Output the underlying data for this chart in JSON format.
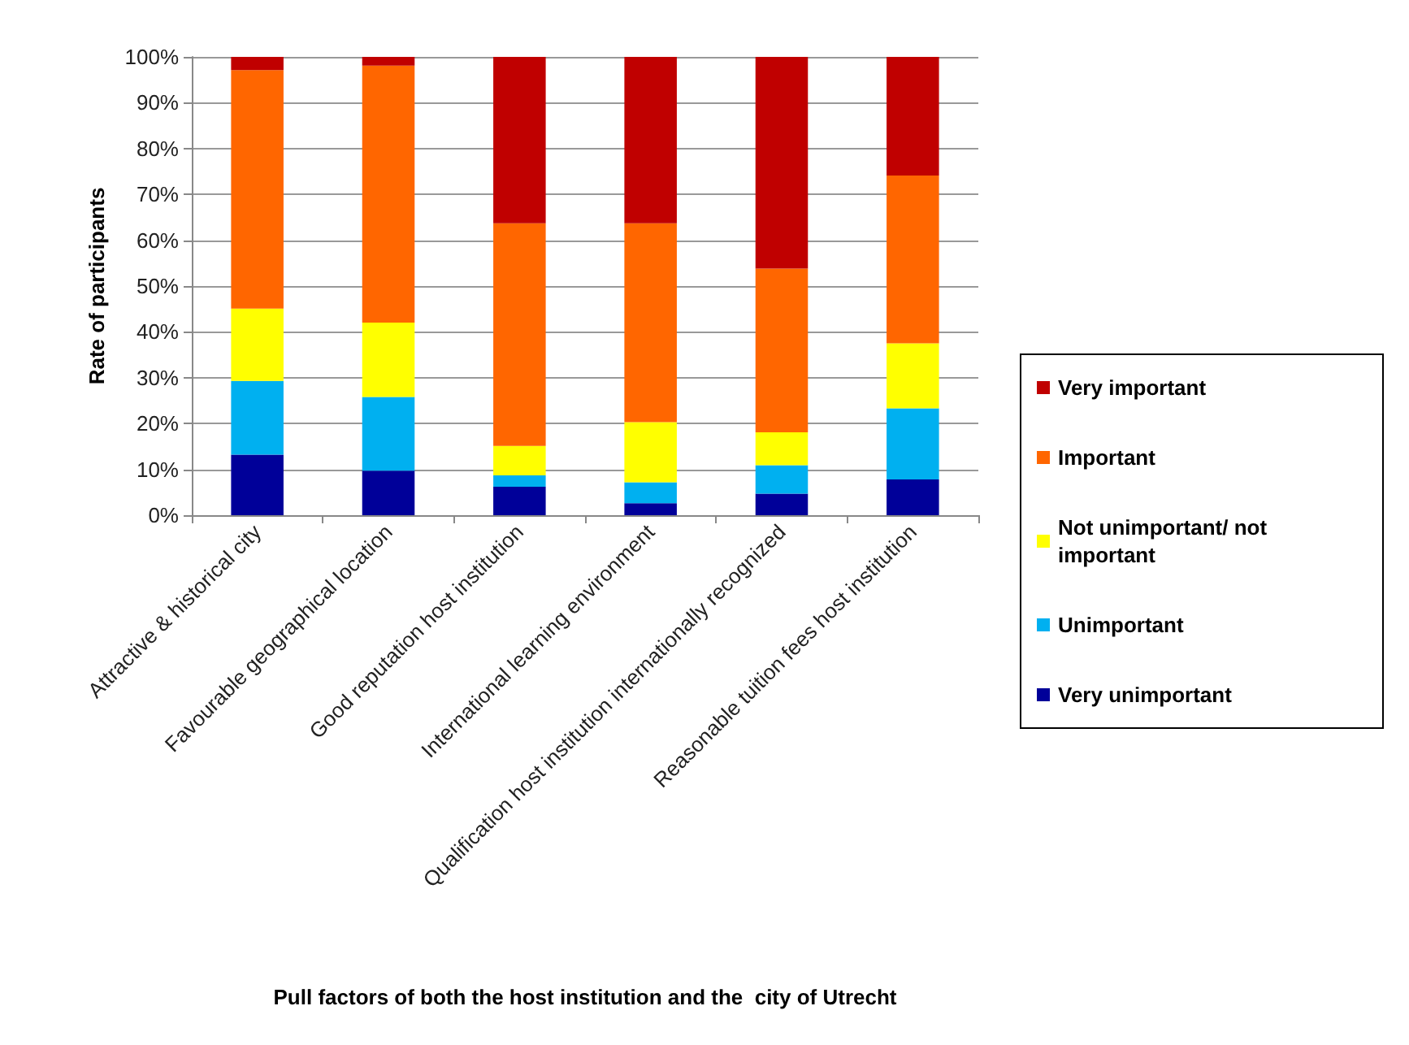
{
  "chart_data": {
    "type": "bar",
    "stacked": true,
    "xlabel": "Pull factors of both the host institution and the  city of Utrecht",
    "ylabel": "Rate of participants",
    "categories": [
      "Attractive & historical city",
      "Favourable geographical location",
      "Good reputation host institution",
      "International learning environment",
      "Qualification host institution internationally recognized",
      "Reasonable tuition fees host institution"
    ],
    "series": [
      {
        "name": "Very unimportant",
        "color": "#000099",
        "values": [
          13.2,
          9.7,
          6.2,
          2.6,
          4.7,
          7.8
        ]
      },
      {
        "name": "Unimportant",
        "color": "#00b0f0",
        "values": [
          16.1,
          16.1,
          2.5,
          4.6,
          6.2,
          15.5
        ]
      },
      {
        "name": "Not unimportant/ not important",
        "color": "#ffff00",
        "values": [
          15.8,
          16.2,
          6.4,
          13.1,
          7.2,
          14.2
        ]
      },
      {
        "name": "Important",
        "color": "#ff6600",
        "values": [
          52,
          56.1,
          48.6,
          43.4,
          35.7,
          36.6
        ]
      },
      {
        "name": "Very important",
        "color": "#c00000",
        "values": [
          2.9,
          1.9,
          36.3,
          36.3,
          46.2,
          25.9
        ]
      }
    ],
    "ylim": [
      0,
      100
    ],
    "yticks": [
      {
        "value": 0,
        "label": "0%"
      },
      {
        "value": 10,
        "label": "10%"
      },
      {
        "value": 20,
        "label": "20%"
      },
      {
        "value": 30,
        "label": "30%"
      },
      {
        "value": 40,
        "label": "40%"
      },
      {
        "value": 50,
        "label": "50%"
      },
      {
        "value": 60,
        "label": "60%"
      },
      {
        "value": 70,
        "label": "70%"
      },
      {
        "value": 80,
        "label": "80%"
      },
      {
        "value": 90,
        "label": "90%"
      },
      {
        "value": 100,
        "label": "100%"
      }
    ],
    "grid": "y",
    "legend": "right"
  }
}
